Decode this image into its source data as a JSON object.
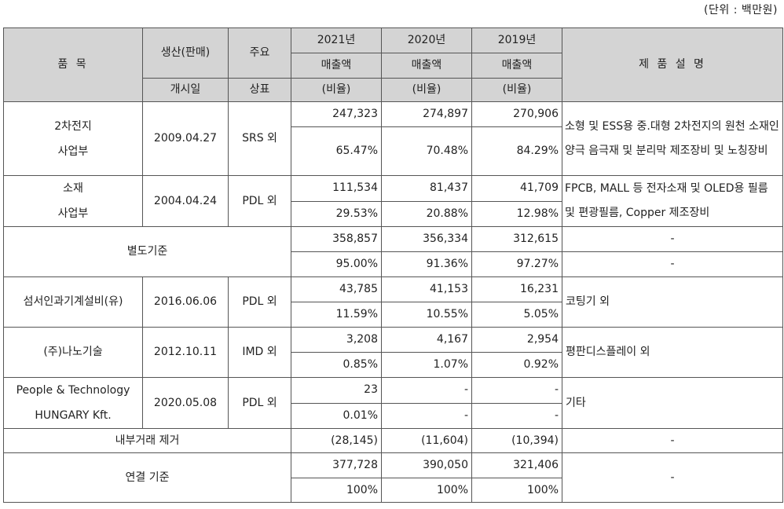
{
  "unit_label": "(단위 : 백만원)",
  "header": {
    "product": "품 목",
    "production_top": "생산(판매)",
    "production_bottom": "개시일",
    "brand_top": "주요",
    "brand_bottom": "상표",
    "y2021_top": "2021년",
    "y2021_mid": "매출액",
    "y2020_top": "2020년",
    "y2020_mid": "매출액",
    "y2019_top": "2019년",
    "y2019_mid": "매출액",
    "ratio": "(비율)",
    "description": "제 품 설 명"
  },
  "rows": {
    "battery": {
      "name_line1": "2차전지",
      "name_line2": "사업부",
      "date": "2009.04.27",
      "brand": "SRS 외",
      "v2021": "247,323",
      "v2020": "274,897",
      "v2019": "270,906",
      "r2021": "65.47%",
      "r2020": "70.48%",
      "r2019": "84.29%",
      "desc": "소형 및 ESS용 중.대형 2차전지의 원천 소재인 양극 음극재 및 분리막 제조장비 및 노칭장비"
    },
    "material": {
      "name_line1": "소재",
      "name_line2": "사업부",
      "date": "2004.04.24",
      "brand": "PDL 외",
      "v2021": "111,534",
      "v2020": "81,437",
      "v2019": "41,709",
      "r2021": "29.53%",
      "r2020": "20.88%",
      "r2019": "12.98%",
      "desc": "FPCB, MALL 등 전자소재 및 OLED용 필름 및 편광필름, Copper 제조장비"
    },
    "separate": {
      "name": "별도기준",
      "v2021": "358,857",
      "v2020": "356,334",
      "v2019": "312,615",
      "r2021": "95.00%",
      "r2020": "91.36%",
      "r2019": "97.27%",
      "desc_top": "-",
      "desc_bottom": "-"
    },
    "seomseo": {
      "name": "섬서인과기계설비(유)",
      "date": "2016.06.06",
      "brand": "PDL 외",
      "v2021": "43,785",
      "v2020": "41,153",
      "v2019": "16,231",
      "r2021": "11.59%",
      "r2020": "10.55%",
      "r2019": "5.05%",
      "desc": "코팅기 외"
    },
    "nano": {
      "name": "(주)나노기술",
      "date": "2012.10.11",
      "brand": "IMD 외",
      "v2021": "3,208",
      "v2020": "4,167",
      "v2019": "2,954",
      "r2021": "0.85%",
      "r2020": "1.07%",
      "r2019": "0.92%",
      "desc": "평판디스플레이 외"
    },
    "people": {
      "name_line1": "People & Technology",
      "name_line2": "HUNGARY Kft.",
      "date": "2020.05.08",
      "brand": "PDL 외",
      "v2021": "23",
      "v2020": "-",
      "v2019": "-",
      "r2021": "0.01%",
      "r2020": "-",
      "r2019": "-",
      "desc": "기타"
    },
    "internal": {
      "name": "내부거래 제거",
      "v2021": "(28,145)",
      "v2020": "(11,604)",
      "v2019": "(10,394)",
      "desc": "-"
    },
    "consolidated": {
      "name": "연결 기준",
      "v2021": "377,728",
      "v2020": "390,050",
      "v2019": "321,406",
      "r2021": "100%",
      "r2020": "100%",
      "r2019": "100%",
      "desc": "-"
    }
  }
}
